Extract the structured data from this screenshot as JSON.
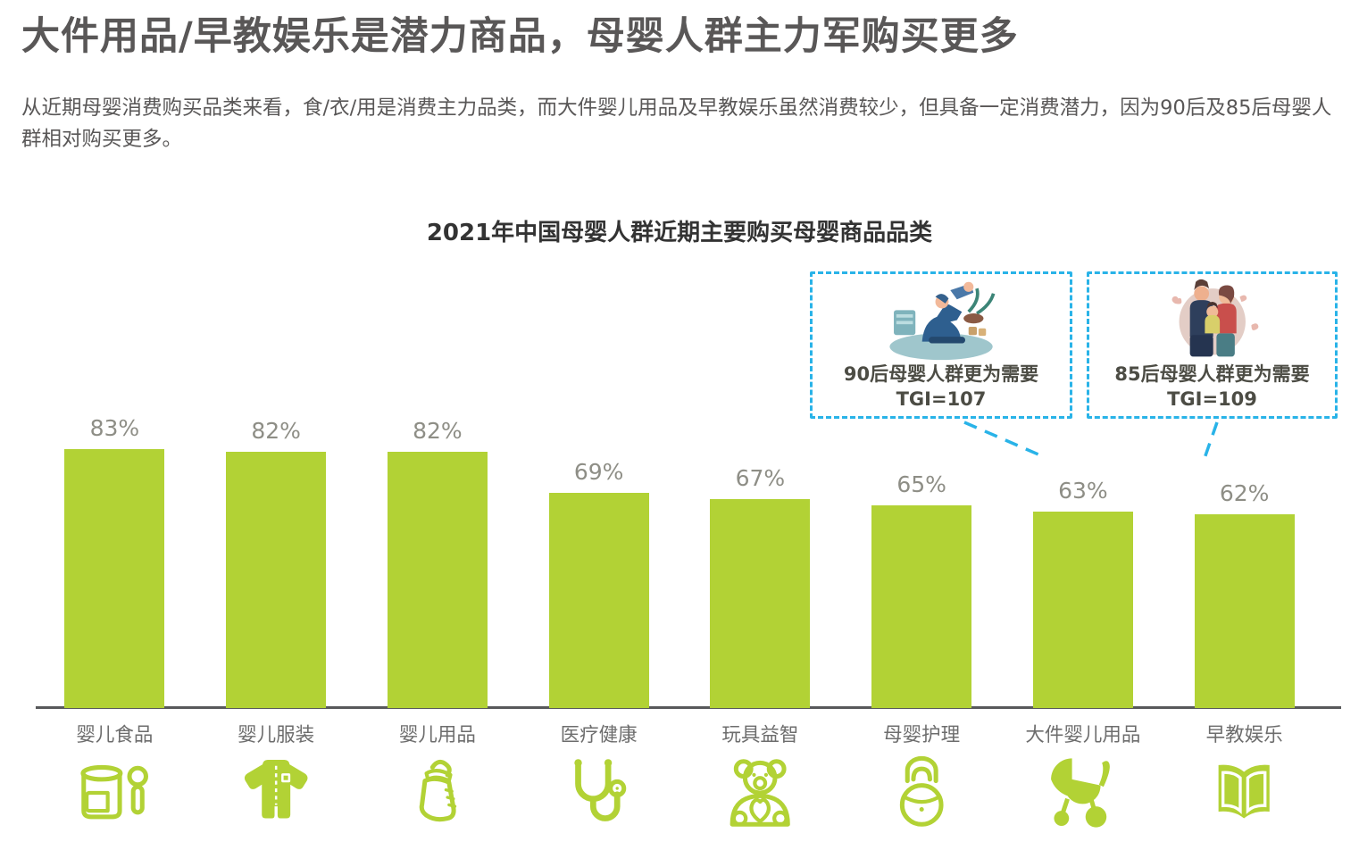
{
  "page": {
    "title": "大件用品/早教娱乐是潜力商品，母婴人群主力军购买更多",
    "description": "从近期母婴消费购买品类来看，食/衣/用是消费主力品类，而大件婴儿用品及早教娱乐虽然消费较少，但具备一定消费潜力，因为90后及85后母婴人群相对购买更多。"
  },
  "chart_data": {
    "type": "bar",
    "title": "2021年中国母婴人群近期主要购买母婴商品品类",
    "categories": [
      "婴儿食品",
      "婴儿服装",
      "婴儿用品",
      "医疗健康",
      "玩具益智",
      "母婴护理",
      "大件婴儿用品",
      "早教娱乐"
    ],
    "values": [
      83,
      82,
      82,
      69,
      67,
      65,
      63,
      62
    ],
    "unit": "%",
    "ylim": [
      0,
      100
    ],
    "grid": false,
    "legend": "none",
    "bar_color": "#b2d235",
    "category_icons": [
      "food-jar-spoon-icon",
      "baby-onesie-icon",
      "baby-bottle-icon",
      "stethoscope-icon",
      "teddy-bear-icon",
      "mother-care-icon",
      "stroller-icon",
      "open-book-icon"
    ],
    "annotations": [
      {
        "label": "90后母婴人群更为需要",
        "tgi": "TGI=107",
        "target_category": "大件婴儿用品",
        "illustration": "parent-playing-with-baby"
      },
      {
        "label": "85后母婴人群更为需要",
        "tgi": "TGI=109",
        "target_category": "早教娱乐",
        "illustration": "family-with-child"
      }
    ]
  },
  "colors": {
    "bar": "#b2d235",
    "callout_border": "#29b3e8",
    "title_text": "#595757",
    "chart_title_text": "#333333",
    "value_label": "#8e8e86",
    "category_label": "#6d6d6d",
    "axis": "#58595b",
    "callout_text": "#4c4c44"
  }
}
